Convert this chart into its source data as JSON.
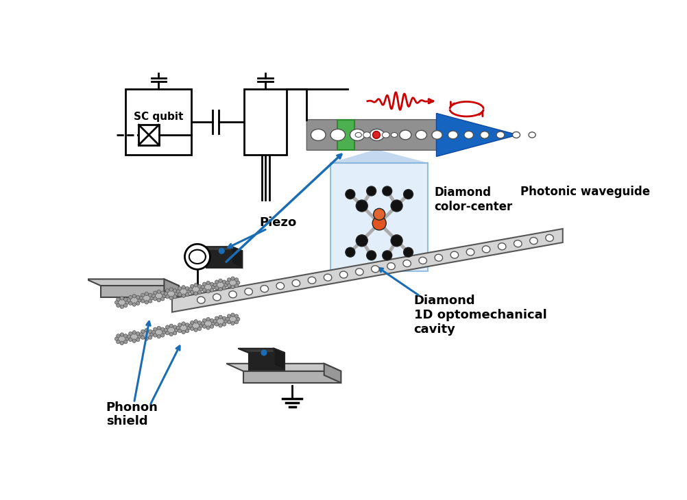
{
  "bg_color": "#ffffff",
  "labels": {
    "sc_qubit": "SC qubit",
    "piezo": "Piezo",
    "diamond_color_center": "Diamond\ncolor-center",
    "photonic_waveguide": "Photonic waveguide",
    "diamond_1d": "Diamond\n1D optomechanical\ncavity",
    "phonon_shield": "Phonon\nshield"
  },
  "colors": {
    "black": "#000000",
    "blue": "#1a6db5",
    "green": "#4caf50",
    "red": "#cc0000",
    "dark_blue": "#1565C0",
    "white": "#ffffff",
    "gray_beam": "#888888",
    "light_gray": "#c8c8c8",
    "dark_gray": "#333333",
    "medium_gray": "#999999",
    "green_dark": "#2d8a2d",
    "bond_gray": "#aaaaaa",
    "shield_gray": "#b0b0b0"
  }
}
